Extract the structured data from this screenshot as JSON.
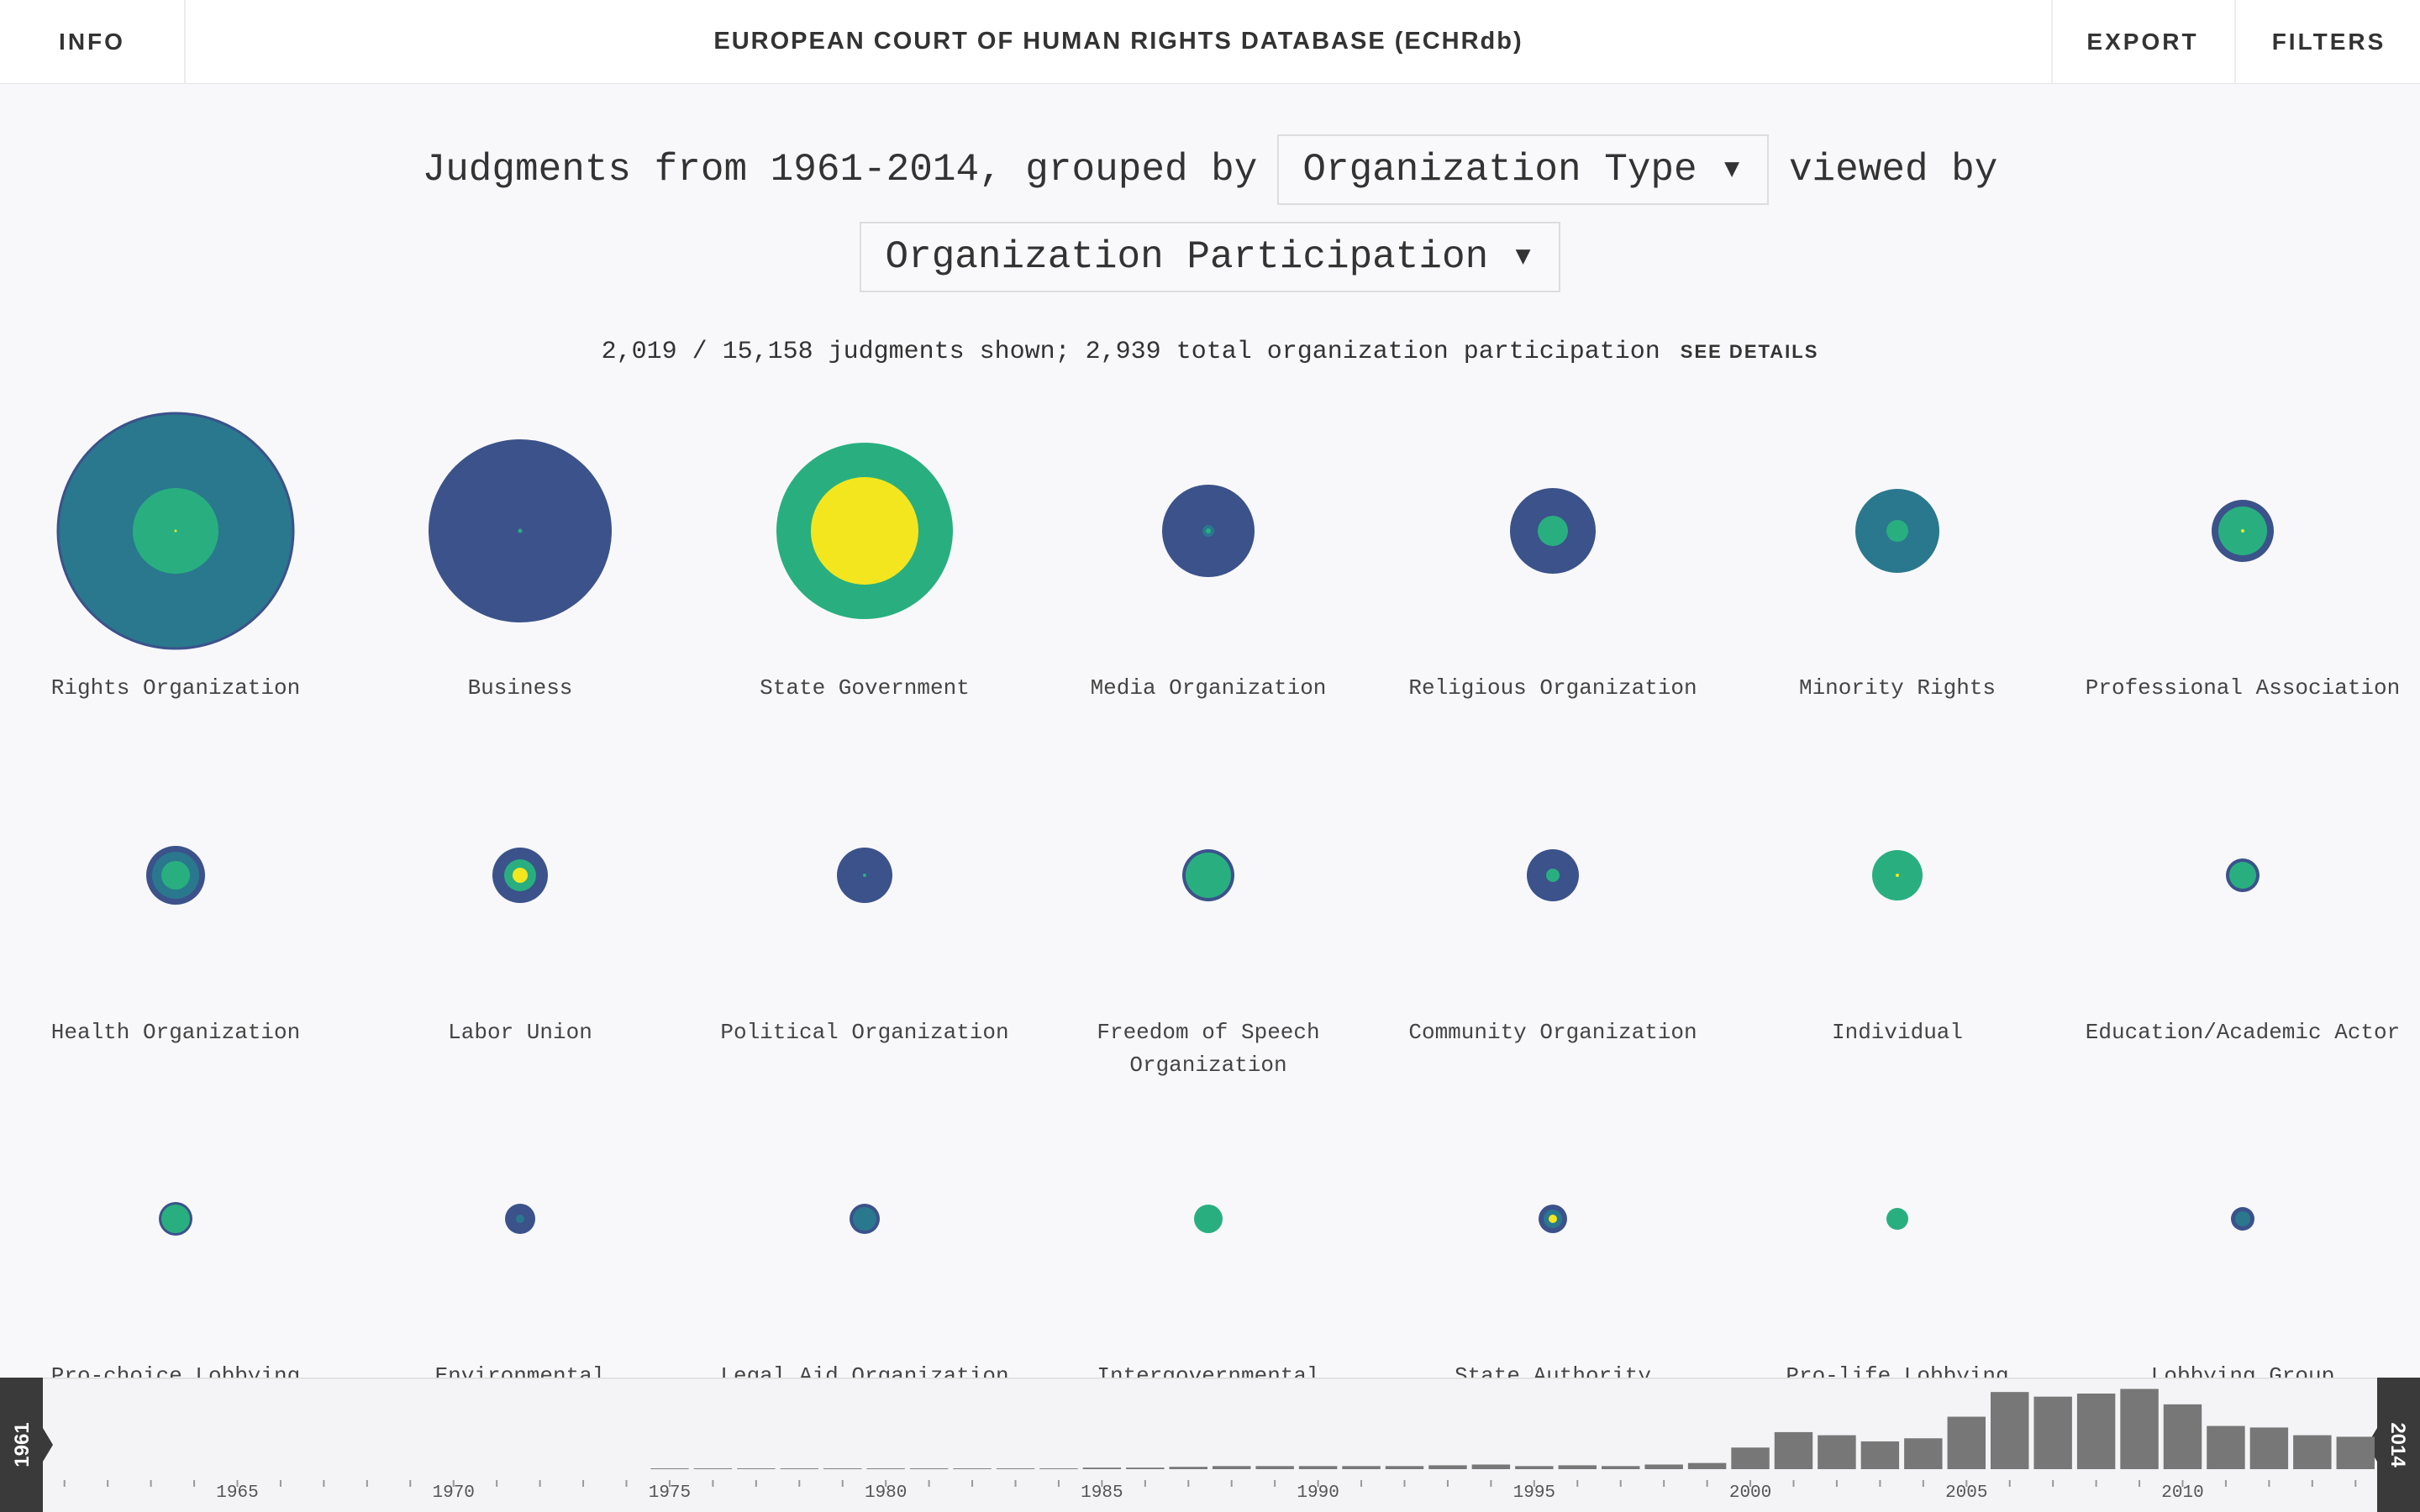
{
  "header": {
    "info": "INFO",
    "title": "EUROPEAN COURT OF HUMAN RIGHTS DATABASE (ECHRdb)",
    "export": "EXPORT",
    "filters": "FILTERS"
  },
  "query": {
    "prefix": "Judgments from 1961-2014, grouped by",
    "group_by": "Organization Type ▾",
    "middle": "viewed by",
    "view_by": "Organization Participation ▾"
  },
  "summary": {
    "text": "2,019 / 15,158 judgments shown; 2,939 total organization participation",
    "details": "SEE DETAILS"
  },
  "groups": [
    {
      "label": "Rights Organization"
    },
    {
      "label": "Business"
    },
    {
      "label": "State Government"
    },
    {
      "label": "Media Organization"
    },
    {
      "label": "Religious Organization"
    },
    {
      "label": "Minority Rights"
    },
    {
      "label": "Professional Association"
    },
    {
      "label": "Health Organization"
    },
    {
      "label": "Labor Union"
    },
    {
      "label": "Political Organization"
    },
    {
      "label": "Freedom of Speech Organization"
    },
    {
      "label": "Community Organization"
    },
    {
      "label": "Individual"
    },
    {
      "label": "Education/Academic Actor"
    },
    {
      "label": "Pro-choice Lobbying"
    },
    {
      "label": "Environmental"
    },
    {
      "label": "Legal Aid Organization"
    },
    {
      "label": "Intergovernmental"
    },
    {
      "label": "State Authority"
    },
    {
      "label": "Pro-life Lobbying"
    },
    {
      "label": "Lobbying Group"
    }
  ],
  "timeline": {
    "start": "1961",
    "end": "2014",
    "year_labels": [
      "1965",
      "1970",
      "1975",
      "1980",
      "1985",
      "1990",
      "1995",
      "2000",
      "2005",
      "2010"
    ],
    "counts": [
      0,
      0,
      0,
      0,
      0,
      0,
      0,
      0,
      0,
      0,
      0,
      0,
      0,
      0,
      0.5,
      0.5,
      0.5,
      0.5,
      0.5,
      0.5,
      0.5,
      0.5,
      0.5,
      0.5,
      1,
      1,
      1.5,
      2,
      2,
      2,
      2,
      2,
      2.5,
      3,
      2,
      2.5,
      2,
      3,
      4,
      14,
      24,
      22,
      18,
      20,
      34,
      50,
      47,
      49,
      52,
      42,
      28,
      27,
      22,
      21
    ]
  }
}
